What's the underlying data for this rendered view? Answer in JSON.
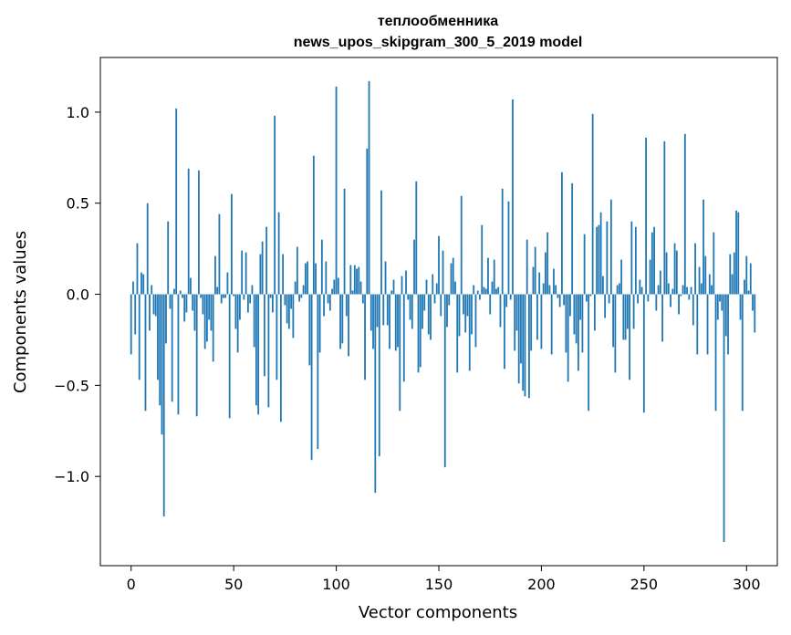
{
  "chart_data": {
    "type": "bar",
    "title_line1": "теплообменника",
    "title_line2": "news_upos_skipgram_300_5_2019 model",
    "xlabel": "Vector components",
    "ylabel": "Components values",
    "xlim": [
      -15,
      315
    ],
    "ylim": [
      -1.49,
      1.3
    ],
    "xticks": [
      0,
      50,
      100,
      150,
      200,
      250,
      300
    ],
    "xtick_labels": [
      "0",
      "50",
      "100",
      "150",
      "200",
      "250",
      "300"
    ],
    "yticks": [
      -1.0,
      -0.5,
      0.0,
      0.5,
      1.0
    ],
    "ytick_labels": [
      "−1.0",
      "−0.5",
      "0.0",
      "0.5",
      "1.0"
    ],
    "bar_color": "#1f77b4",
    "values": [
      -0.33,
      0.07,
      -0.22,
      0.28,
      -0.47,
      0.12,
      0.11,
      -0.64,
      0.5,
      -0.2,
      0.05,
      -0.11,
      -0.12,
      -0.47,
      -0.61,
      -0.77,
      -1.22,
      -0.27,
      0.4,
      -0.08,
      -0.59,
      0.03,
      1.02,
      -0.66,
      0.02,
      -0.02,
      -0.15,
      -0.1,
      0.69,
      0.09,
      -0.09,
      -0.2,
      -0.67,
      0.68,
      -0.02,
      -0.11,
      -0.3,
      -0.26,
      -0.14,
      -0.2,
      -0.37,
      0.21,
      0.04,
      0.44,
      -0.05,
      -0.02,
      -0.02,
      0.12,
      -0.68,
      0.55,
      -0.01,
      -0.19,
      -0.32,
      -0.14,
      0.24,
      -0.03,
      0.23,
      -0.1,
      -0.05,
      0.05,
      -0.29,
      -0.61,
      -0.66,
      0.22,
      0.29,
      -0.45,
      0.37,
      -0.62,
      -0.02,
      -0.1,
      0.98,
      -0.47,
      0.45,
      -0.7,
      0.22,
      -0.06,
      -0.16,
      -0.19,
      -0.08,
      -0.24,
      0.07,
      0.26,
      -0.04,
      -0.02,
      0.05,
      0.17,
      0.18,
      -0.39,
      -0.91,
      0.76,
      0.17,
      -0.85,
      -0.32,
      0.3,
      -0.12,
      0.18,
      -0.05,
      -0.09,
      0.03,
      0.08,
      1.14,
      0.09,
      -0.3,
      -0.27,
      0.58,
      -0.12,
      -0.34,
      0.16,
      0.02,
      0.16,
      0.14,
      0.15,
      0.07,
      -0.05,
      -0.47,
      0.8,
      1.17,
      -0.2,
      -0.3,
      -1.09,
      -0.18,
      -0.89,
      0.57,
      -0.17,
      0.18,
      -0.17,
      -0.3,
      0.02,
      0.08,
      -0.31,
      -0.29,
      -0.64,
      0.1,
      -0.48,
      0.13,
      -0.03,
      -0.14,
      -0.19,
      0.3,
      0.62,
      -0.43,
      -0.4,
      -0.19,
      -0.09,
      0.08,
      -0.22,
      -0.25,
      0.11,
      -0.05,
      0.06,
      0.32,
      -0.12,
      0.24,
      -0.95,
      -0.18,
      -0.06,
      0.17,
      0.2,
      0.07,
      -0.43,
      -0.23,
      0.54,
      -0.11,
      -0.21,
      -0.12,
      -0.42,
      -0.22,
      0.05,
      -0.29,
      0.02,
      -0.03,
      0.38,
      0.04,
      0.03,
      0.2,
      -0.11,
      0.07,
      0.19,
      0.03,
      0.04,
      -0.18,
      0.58,
      -0.41,
      -0.07,
      0.51,
      -0.03,
      1.07,
      -0.31,
      -0.2,
      -0.49,
      -0.38,
      -0.53,
      -0.56,
      0.3,
      -0.57,
      -0.31,
      0.15,
      0.26,
      -0.25,
      0.12,
      -0.3,
      0.06,
      0.23,
      0.34,
      0.05,
      -0.33,
      0.14,
      0.05,
      -0.02,
      -0.07,
      0.67,
      -0.06,
      -0.32,
      -0.48,
      -0.12,
      0.61,
      -0.22,
      -0.27,
      -0.42,
      -0.14,
      -0.32,
      0.33,
      -0.04,
      -0.64,
      -0.01,
      0.99,
      -0.2,
      0.37,
      0.38,
      0.45,
      0.1,
      -0.13,
      0.4,
      -0.05,
      0.52,
      -0.29,
      -0.43,
      0.05,
      0.06,
      0.19,
      -0.25,
      -0.25,
      -0.19,
      -0.47,
      0.4,
      -0.19,
      0.37,
      -0.05,
      0.08,
      0.04,
      -0.65,
      0.86,
      -0.04,
      0.19,
      0.34,
      0.37,
      -0.09,
      0.05,
      0.13,
      -0.26,
      0.84,
      0.23,
      0.06,
      -0.07,
      0.03,
      0.28,
      0.24,
      -0.11,
      -0.01,
      0.05,
      0.88,
      0.04,
      -0.03,
      0.04,
      -0.17,
      0.28,
      -0.33,
      0.15,
      0.06,
      0.52,
      0.21,
      -0.33,
      0.11,
      0.05,
      0.34,
      -0.64,
      -0.14,
      -0.04,
      -0.09,
      -1.36,
      -0.23,
      -0.33,
      0.22,
      0.11,
      0.23,
      0.46,
      0.45,
      -0.14,
      -0.64,
      0.08,
      0.21,
      0.02,
      0.17,
      -0.09,
      -0.21
    ]
  }
}
